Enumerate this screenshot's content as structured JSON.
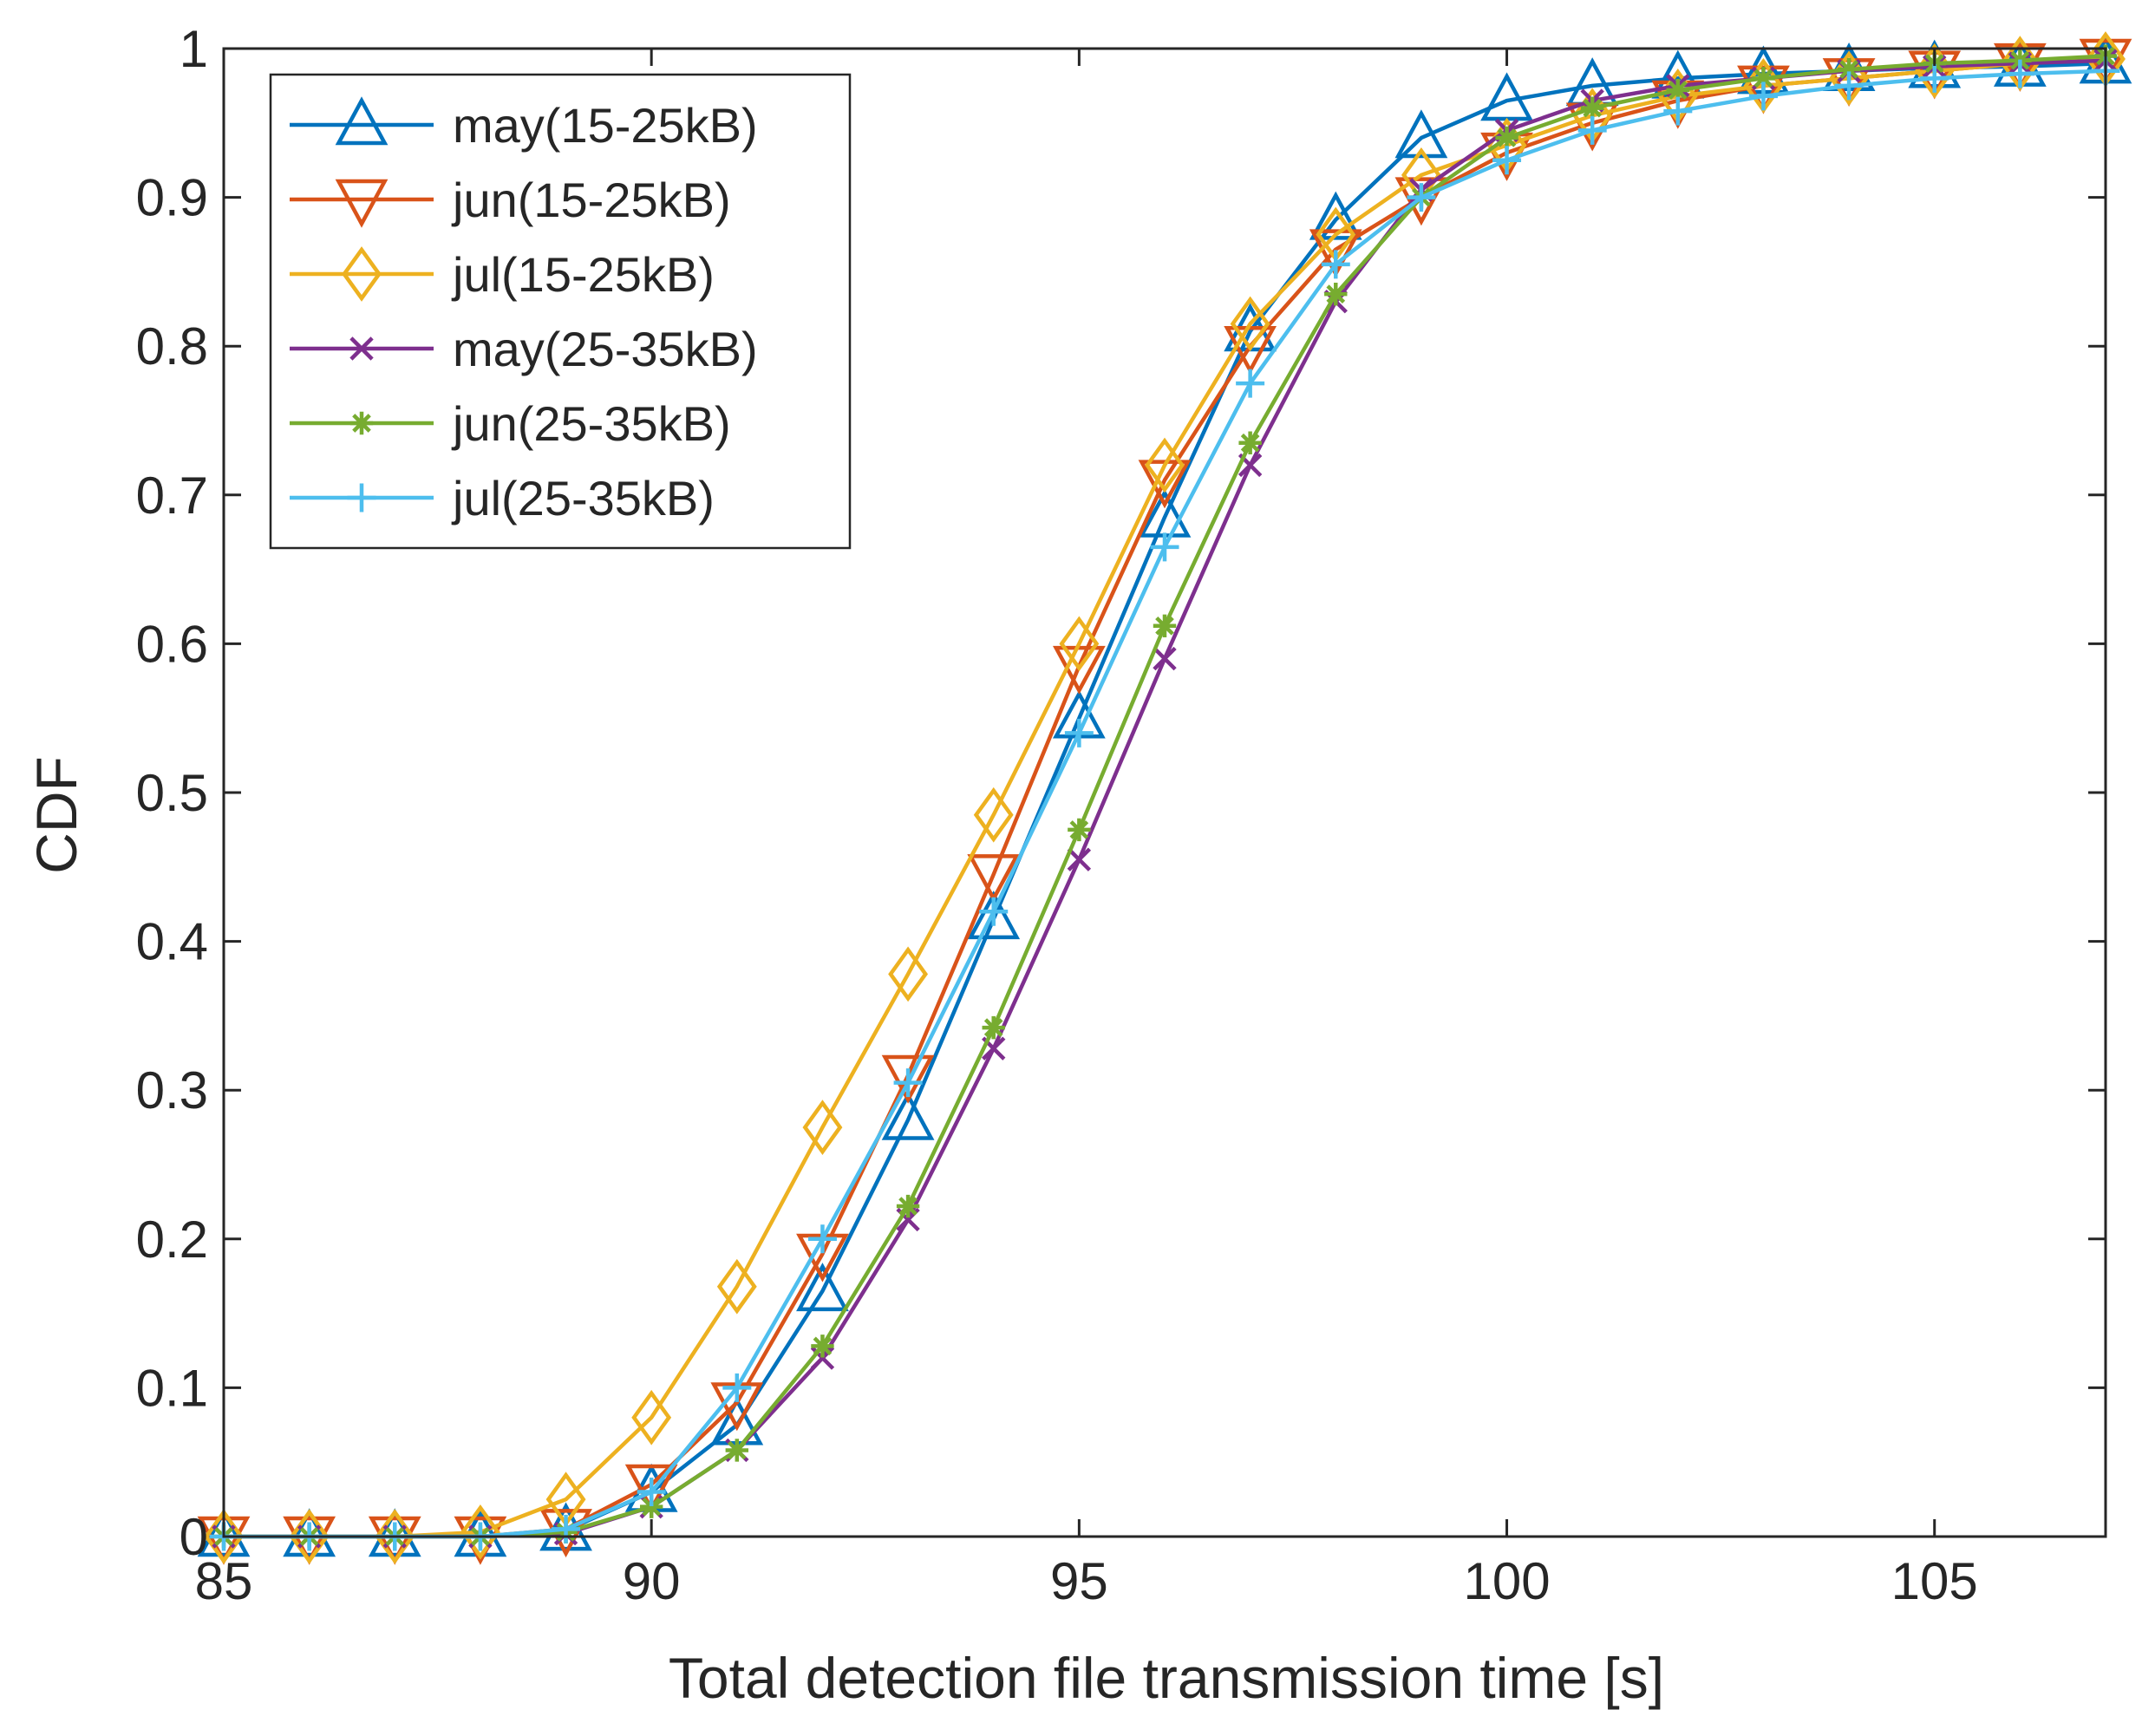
{
  "chart_data": {
    "type": "line",
    "title": "",
    "xlabel": "Total detection file transmission time [s]",
    "ylabel": "CDF",
    "xlim": [
      85,
      107
    ],
    "ylim": [
      0,
      1
    ],
    "xticks": [
      85,
      90,
      95,
      100,
      105
    ],
    "xtick_labels": [
      "85",
      "90",
      "95",
      "100",
      "105"
    ],
    "yticks": [
      0,
      0.1,
      0.2,
      0.3,
      0.4,
      0.5,
      0.6,
      0.7,
      0.8,
      0.9,
      1
    ],
    "ytick_labels": [
      "0",
      "0.1",
      "0.2",
      "0.3",
      "0.4",
      "0.5",
      "0.6",
      "0.7",
      "0.8",
      "0.9",
      "1"
    ],
    "grid": false,
    "legend_position": "top-left",
    "x": [
      85,
      86,
      87,
      88,
      89,
      90,
      91,
      92,
      93,
      94,
      95,
      96,
      97,
      98,
      99,
      100,
      101,
      102,
      103,
      104,
      105,
      106,
      107
    ],
    "series": [
      {
        "name": "may(15-25kB)",
        "color": "#0072BD",
        "marker": "triangle-up",
        "values": [
          0,
          0,
          0,
          0,
          0.004,
          0.03,
          0.075,
          0.165,
          0.28,
          0.415,
          0.55,
          0.685,
          0.81,
          0.885,
          0.94,
          0.965,
          0.975,
          0.98,
          0.983,
          0.985,
          0.987,
          0.988,
          0.99
        ]
      },
      {
        "name": "jun(15-25kB)",
        "color": "#D95319",
        "marker": "triangle-down",
        "values": [
          0,
          0,
          0,
          0,
          0.005,
          0.035,
          0.09,
          0.19,
          0.31,
          0.445,
          0.585,
          0.71,
          0.8,
          0.865,
          0.9,
          0.93,
          0.95,
          0.965,
          0.975,
          0.98,
          0.985,
          0.99,
          0.993
        ]
      },
      {
        "name": "jul(15-25kB)",
        "color": "#EDB120",
        "marker": "diamond",
        "values": [
          0,
          0,
          0,
          0.003,
          0.025,
          0.08,
          0.168,
          0.275,
          0.378,
          0.485,
          0.6,
          0.72,
          0.815,
          0.875,
          0.915,
          0.935,
          0.955,
          0.968,
          0.975,
          0.98,
          0.985,
          0.99,
          0.993
        ]
      },
      {
        "name": "may(25-35kB)",
        "color": "#7E2F8E",
        "marker": "x",
        "values": [
          0,
          0,
          0,
          0,
          0.002,
          0.02,
          0.058,
          0.12,
          0.213,
          0.328,
          0.455,
          0.59,
          0.72,
          0.83,
          0.905,
          0.945,
          0.965,
          0.975,
          0.98,
          0.985,
          0.988,
          0.99,
          0.992
        ]
      },
      {
        "name": "jun(25-35kB)",
        "color": "#77AC30",
        "marker": "asterisk",
        "values": [
          0,
          0,
          0,
          0,
          0.003,
          0.02,
          0.058,
          0.128,
          0.222,
          0.342,
          0.475,
          0.612,
          0.735,
          0.835,
          0.9,
          0.94,
          0.96,
          0.972,
          0.98,
          0.986,
          0.99,
          0.992,
          0.995
        ]
      },
      {
        "name": "jul(25-35kB)",
        "color": "#4DBEEE",
        "marker": "plus",
        "values": [
          0,
          0,
          0,
          0,
          0.005,
          0.03,
          0.1,
          0.2,
          0.305,
          0.42,
          0.54,
          0.665,
          0.775,
          0.855,
          0.9,
          0.925,
          0.945,
          0.958,
          0.968,
          0.975,
          0.98,
          0.983,
          0.985
        ]
      }
    ]
  }
}
